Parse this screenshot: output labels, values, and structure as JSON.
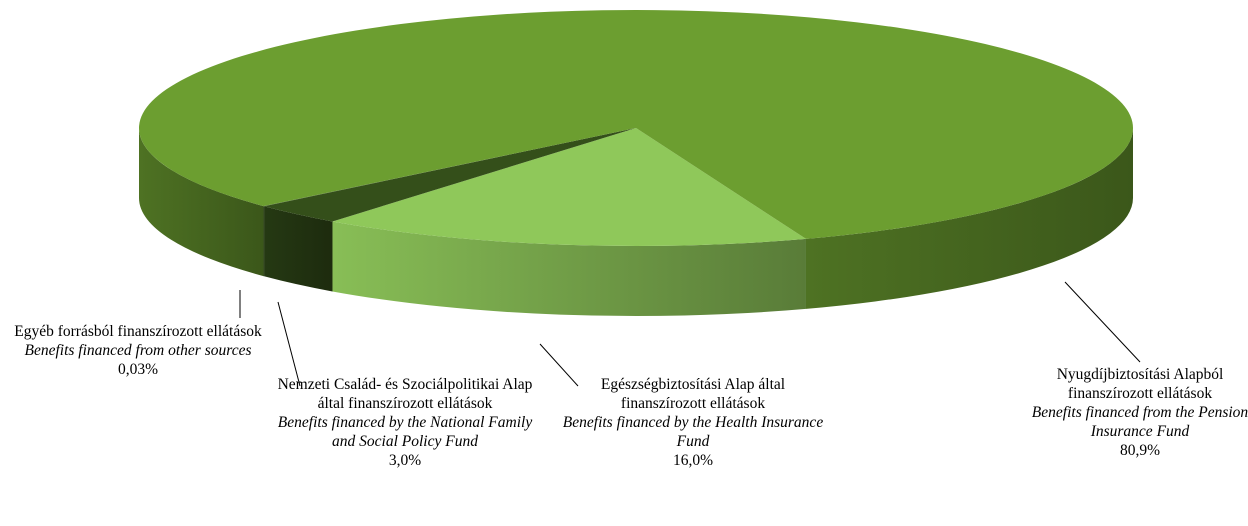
{
  "chart_data": {
    "type": "pie3d",
    "categories": [
      "Egészségbiztosítási Alap által finanszírozott ellátások",
      "Nemzeti Család- és Szociálpolitikai Alap által finanszírozott ellátások",
      "Egyéb forrásból finanszírozott ellátások",
      "Nyugdíjbiztosítási Alapból finanszírozott ellátások"
    ],
    "categories_en": [
      "Benefits financed by the Health Insurance Fund",
      "Benefits financed by the National Family and Social Policy Fund",
      "Benefits financed from other sources",
      "Benefits financed from the Pension Insurance Fund"
    ],
    "values": [
      16.0,
      3.0,
      0.03,
      80.9
    ],
    "value_labels": [
      "16,0%",
      "3,0%",
      "0,03%",
      "80,9%"
    ],
    "colors": [
      "#8fc85a",
      "#344f1a",
      "#3a5a1c",
      "#6c9e30"
    ]
  }
}
